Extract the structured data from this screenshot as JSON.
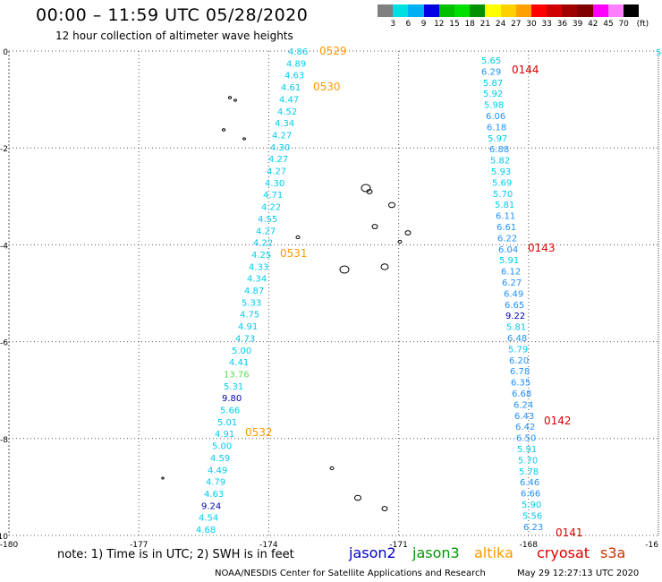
{
  "header": {
    "title": "00:00 – 11:59 UTC 05/28/2020",
    "subtitle": "12 hour collection of altimeter wave heights"
  },
  "legend": {
    "colors": [
      "#808080",
      "#00e0e0",
      "#00b0f0",
      "#0000e0",
      "#00c000",
      "#00e000",
      "#009000",
      "#ffff00",
      "#ffd000",
      "#ffa000",
      "#ff0000",
      "#d00000",
      "#a00000",
      "#800000",
      "#ff00ff",
      "#ff80ff",
      "#000000"
    ],
    "labels": [
      "3",
      "6",
      "9",
      "12",
      "15",
      "18",
      "21",
      "24",
      "27",
      "30",
      "33",
      "36",
      "39",
      "42",
      "45",
      "70",
      "(ft)"
    ]
  },
  "axes": {
    "y_ticks": [
      "0",
      "-2",
      "-4",
      "-6",
      "-8",
      "-10"
    ],
    "x_ticks": [
      "-180",
      "-177",
      "-174",
      "-171",
      "-168",
      "-16"
    ]
  },
  "colors": {
    "cyan": "#00ccee",
    "blue": "#1e90ff",
    "navy": "#0000aa",
    "green": "#55dd55",
    "orange": "#ff9900",
    "red": "#dd0000"
  },
  "tracks": [
    {
      "id": "west",
      "values": [
        {
          "v": "4.86",
          "c": "cyan"
        },
        {
          "v": "4.89",
          "c": "cyan"
        },
        {
          "v": "4.63",
          "c": "cyan"
        },
        {
          "v": "4.61",
          "c": "cyan"
        },
        {
          "v": "4.47",
          "c": "cyan"
        },
        {
          "v": "4.52",
          "c": "cyan"
        },
        {
          "v": "4.34",
          "c": "cyan"
        },
        {
          "v": "4.27",
          "c": "cyan"
        },
        {
          "v": "4.30",
          "c": "cyan"
        },
        {
          "v": "4.27",
          "c": "cyan"
        },
        {
          "v": "4.27",
          "c": "cyan"
        },
        {
          "v": "4.30",
          "c": "cyan"
        },
        {
          "v": "4.71",
          "c": "cyan"
        },
        {
          "v": "4.22",
          "c": "cyan"
        },
        {
          "v": "4.55",
          "c": "cyan"
        },
        {
          "v": "4.27",
          "c": "cyan"
        },
        {
          "v": "4.22",
          "c": "cyan"
        },
        {
          "v": "4.25",
          "c": "cyan"
        },
        {
          "v": "4.33",
          "c": "cyan"
        },
        {
          "v": "4.34",
          "c": "cyan"
        },
        {
          "v": "4.87",
          "c": "cyan"
        },
        {
          "v": "5.33",
          "c": "cyan"
        },
        {
          "v": "4.75",
          "c": "cyan"
        },
        {
          "v": "4.91",
          "c": "cyan"
        },
        {
          "v": "4.73",
          "c": "cyan"
        },
        {
          "v": "5.00",
          "c": "cyan"
        },
        {
          "v": "4.41",
          "c": "cyan"
        },
        {
          "v": "13.76",
          "c": "green"
        },
        {
          "v": "5.31",
          "c": "cyan"
        },
        {
          "v": "9.80",
          "c": "navy"
        },
        {
          "v": "5.66",
          "c": "cyan"
        },
        {
          "v": "5.01",
          "c": "cyan"
        },
        {
          "v": "4.91",
          "c": "cyan"
        },
        {
          "v": "5.00",
          "c": "cyan"
        },
        {
          "v": "4.59",
          "c": "cyan"
        },
        {
          "v": "4.49",
          "c": "cyan"
        },
        {
          "v": "4.79",
          "c": "cyan"
        },
        {
          "v": "4.63",
          "c": "cyan"
        },
        {
          "v": "9.24",
          "c": "navy"
        },
        {
          "v": "4.54",
          "c": "cyan"
        },
        {
          "v": "4.68",
          "c": "cyan"
        }
      ],
      "times": [
        {
          "t": "0529",
          "c": "orange"
        },
        {
          "t": "0530",
          "c": "orange"
        },
        {
          "t": "0531",
          "c": "orange"
        },
        {
          "t": "0532",
          "c": "orange"
        }
      ]
    },
    {
      "id": "east",
      "values": [
        {
          "v": "5.65",
          "c": "cyan"
        },
        {
          "v": "6.29",
          "c": "blue"
        },
        {
          "v": "5.87",
          "c": "cyan"
        },
        {
          "v": "5.92",
          "c": "cyan"
        },
        {
          "v": "5.98",
          "c": "cyan"
        },
        {
          "v": "6.06",
          "c": "blue"
        },
        {
          "v": "6.18",
          "c": "blue"
        },
        {
          "v": "5.97",
          "c": "cyan"
        },
        {
          "v": "6.88",
          "c": "blue"
        },
        {
          "v": "5.82",
          "c": "cyan"
        },
        {
          "v": "5.93",
          "c": "cyan"
        },
        {
          "v": "5.69",
          "c": "cyan"
        },
        {
          "v": "5.70",
          "c": "cyan"
        },
        {
          "v": "5.81",
          "c": "cyan"
        },
        {
          "v": "6.11",
          "c": "blue"
        },
        {
          "v": "6.61",
          "c": "blue"
        },
        {
          "v": "6.22",
          "c": "blue"
        },
        {
          "v": "6.04",
          "c": "blue"
        },
        {
          "v": "5.91",
          "c": "cyan"
        },
        {
          "v": "6.12",
          "c": "blue"
        },
        {
          "v": "6.27",
          "c": "blue"
        },
        {
          "v": "6.49",
          "c": "blue"
        },
        {
          "v": "6.65",
          "c": "blue"
        },
        {
          "v": "9.22",
          "c": "navy"
        },
        {
          "v": "5.81",
          "c": "cyan"
        },
        {
          "v": "6.48",
          "c": "blue"
        },
        {
          "v": "5.79",
          "c": "cyan"
        },
        {
          "v": "6.20",
          "c": "blue"
        },
        {
          "v": "6.78",
          "c": "blue"
        },
        {
          "v": "6.35",
          "c": "blue"
        },
        {
          "v": "6.68",
          "c": "blue"
        },
        {
          "v": "6.24",
          "c": "blue"
        },
        {
          "v": "6.43",
          "c": "blue"
        },
        {
          "v": "6.42",
          "c": "blue"
        },
        {
          "v": "6.50",
          "c": "blue"
        },
        {
          "v": "5.91",
          "c": "cyan"
        },
        {
          "v": "5.70",
          "c": "cyan"
        },
        {
          "v": "5.78",
          "c": "cyan"
        },
        {
          "v": "6.46",
          "c": "blue"
        },
        {
          "v": "6.66",
          "c": "blue"
        },
        {
          "v": "5.90",
          "c": "cyan"
        },
        {
          "v": "5.56",
          "c": "cyan"
        },
        {
          "v": "6.23",
          "c": "blue"
        }
      ],
      "times": [
        {
          "t": "0144",
          "c": "red"
        },
        {
          "t": "0143",
          "c": "red"
        },
        {
          "t": "0142",
          "c": "red"
        },
        {
          "t": "0141",
          "c": "red"
        }
      ]
    }
  ],
  "edge_value": {
    "v": "5",
    "c": "cyan"
  },
  "footer": {
    "note": "note:  1) Time is in UTC;  2) SWH is in feet",
    "satellites": [
      {
        "name": "jason2"
      },
      {
        "name": "jason3"
      },
      {
        "name": "altika"
      },
      {
        "name": "cryosat"
      },
      {
        "name": "s3a"
      }
    ],
    "credit": "NOAA/NESDIS Center for Satellite Applications and Research",
    "generated": "May 29 12:27:13 UTC 2020"
  }
}
